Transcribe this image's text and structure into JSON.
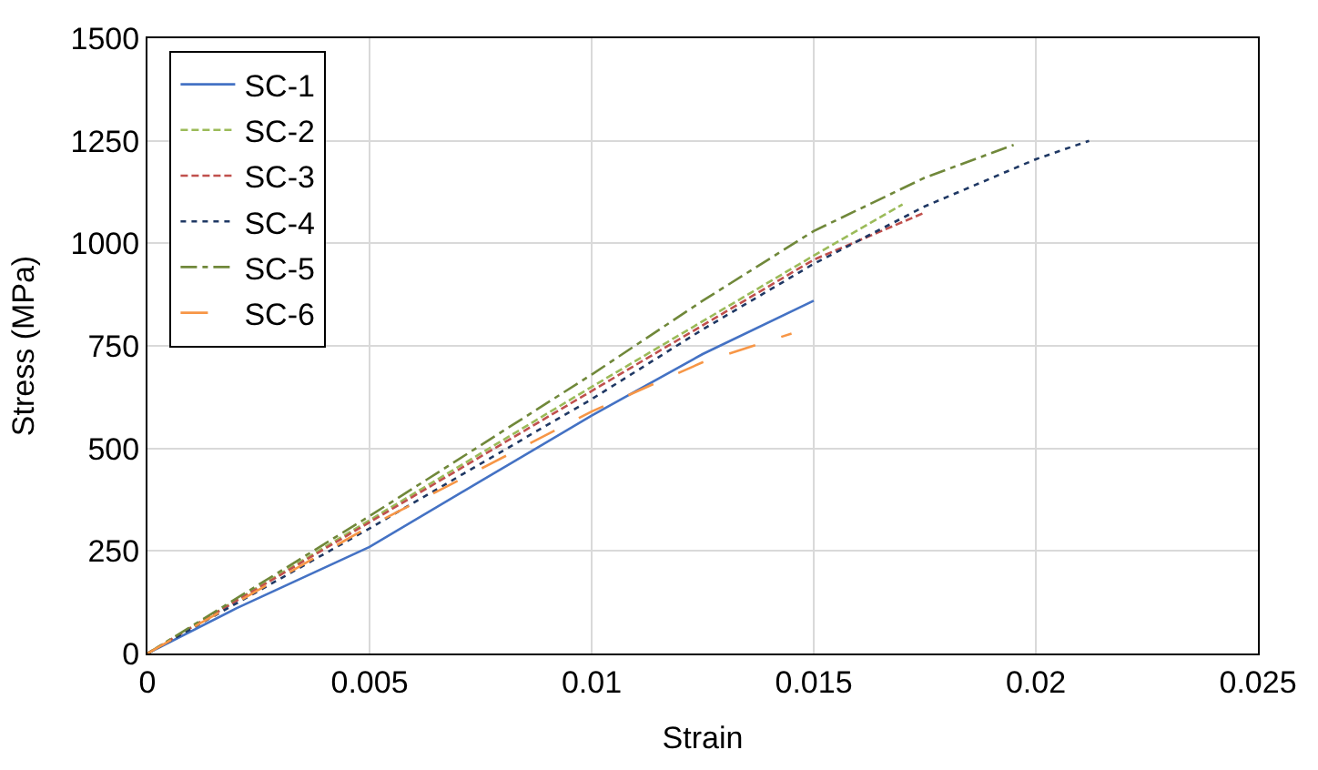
{
  "chart_data": {
    "type": "line",
    "xlabel": "Strain",
    "ylabel": "Stress (MPa)",
    "xlim": [
      0,
      0.025
    ],
    "xticks": [
      0,
      0.005,
      0.01,
      0.015,
      0.02,
      0.025
    ],
    "ylim": [
      0,
      1500
    ],
    "yticks": [
      0,
      250,
      500,
      750,
      1000,
      1250,
      1500
    ],
    "grid": true,
    "legend": "top left",
    "marker": "none",
    "series": [
      {
        "name": "SC-1",
        "color": "#4472c4",
        "line_style": "solid",
        "x": [
          0,
          0.002,
          0.005,
          0.0075,
          0.01,
          0.0125,
          0.015
        ],
        "values": [
          0,
          110,
          260,
          420,
          580,
          730,
          860
        ]
      },
      {
        "name": "SC-2",
        "color": "#9bbb59",
        "line_style": "dashed",
        "x": [
          0,
          0.005,
          0.01,
          0.0125,
          0.015,
          0.017
        ],
        "values": [
          0,
          325,
          650,
          810,
          970,
          1095
        ]
      },
      {
        "name": "SC-3",
        "color": "#c0504d",
        "line_style": "dashed",
        "x": [
          0,
          0.005,
          0.01,
          0.0125,
          0.015,
          0.0175
        ],
        "values": [
          0,
          320,
          640,
          800,
          960,
          1075
        ]
      },
      {
        "name": "SC-4",
        "color": "#1f3864",
        "line_style": "dotted",
        "x": [
          0,
          0.005,
          0.01,
          0.0125,
          0.015,
          0.0175,
          0.02,
          0.0212
        ],
        "values": [
          0,
          305,
          620,
          790,
          950,
          1090,
          1205,
          1250
        ]
      },
      {
        "name": "SC-5",
        "color": "#70883a",
        "line_style": "dashdot",
        "x": [
          0,
          0.005,
          0.01,
          0.0125,
          0.015,
          0.0175,
          0.0195
        ],
        "values": [
          0,
          335,
          680,
          860,
          1030,
          1160,
          1240
        ]
      },
      {
        "name": "SC-6",
        "color": "#f79646",
        "line_style": "longdash",
        "x": [
          0,
          0.005,
          0.01,
          0.0125,
          0.0145
        ],
        "values": [
          0,
          310,
          590,
          710,
          780
        ]
      }
    ]
  }
}
